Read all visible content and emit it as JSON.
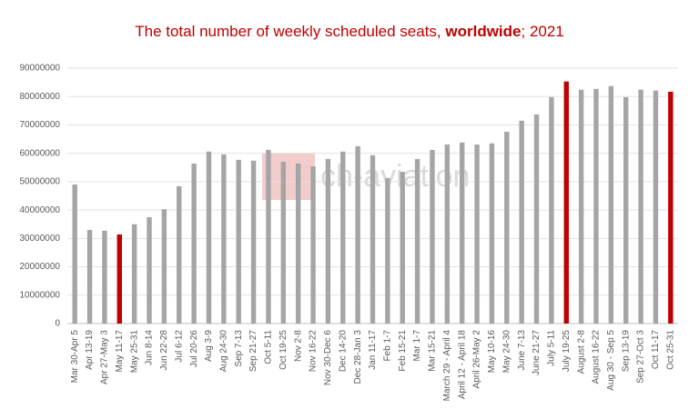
{
  "chart_data": {
    "type": "bar",
    "title": [
      "The total number of weekly scheduled seats, ",
      "worldwide",
      "; 2021"
    ],
    "watermark": "ch-aviation",
    "categories": [
      "Mar 30-Apr 5",
      "Apr 13-19",
      "Apr 27-May 3",
      "May 11-17",
      "May 25-31",
      "Jun 8-14",
      "Jun 22-28",
      "Jul 6-12",
      "Jul 20-26",
      "Aug 3-9",
      "Aug 24-30",
      "Sep 7-13",
      "Sep 21-27",
      "Oct 5-11",
      "Oct 19-25",
      "Nov 2-8",
      "Nov 16-22",
      "Nov 30-Dec 6",
      "Dec 14-20",
      "Dec 28-Jan 3",
      "Jan 11-17",
      "Feb 1-7",
      "Feb 15-21",
      "Mar 1-7",
      "Mar 15-21",
      "March 29 - April 4",
      "April 12 - April 18",
      "April 26-May 2",
      "May 10-16",
      "May 24-30",
      "June 7-13",
      "June 21-27",
      "July 5-11",
      "July 19-25",
      "August 2-8",
      "August 16-22",
      "Aug 30 - Sep 5",
      "Sep 13-19",
      "Sep 27-Oct 3",
      "Oct 11-17",
      "Oct 25-31"
    ],
    "values": [
      49000000,
      33000000,
      32700000,
      31400000,
      35000000,
      37500000,
      40300000,
      48400000,
      56400000,
      60600000,
      59600000,
      57700000,
      57400000,
      61200000,
      57000000,
      56400000,
      55400000,
      58000000,
      60600000,
      62500000,
      59300000,
      51300000,
      53500000,
      58000000,
      61200000,
      63100000,
      63800000,
      63100000,
      63500000,
      67600000,
      71500000,
      73700000,
      79800000,
      85300000,
      82400000,
      82700000,
      83700000,
      79800000,
      82400000,
      82100000,
      81700000
    ],
    "colors": [
      "#a5a5a5",
      "#a5a5a5",
      "#a5a5a5",
      "#c00000",
      "#a5a5a5",
      "#a5a5a5",
      "#a5a5a5",
      "#a5a5a5",
      "#a5a5a5",
      "#a5a5a5",
      "#a5a5a5",
      "#a5a5a5",
      "#a5a5a5",
      "#a5a5a5",
      "#a5a5a5",
      "#a5a5a5",
      "#a5a5a5",
      "#a5a5a5",
      "#a5a5a5",
      "#a5a5a5",
      "#a5a5a5",
      "#a5a5a5",
      "#a5a5a5",
      "#a5a5a5",
      "#a5a5a5",
      "#a5a5a5",
      "#a5a5a5",
      "#a5a5a5",
      "#a5a5a5",
      "#a5a5a5",
      "#a5a5a5",
      "#a5a5a5",
      "#a5a5a5",
      "#c00000",
      "#a5a5a5",
      "#a5a5a5",
      "#a5a5a5",
      "#a5a5a5",
      "#a5a5a5",
      "#a5a5a5",
      "#c00000"
    ],
    "ylim": [
      0,
      90000000
    ],
    "yticks": [
      0,
      10000000,
      20000000,
      30000000,
      40000000,
      50000000,
      60000000,
      70000000,
      80000000,
      90000000
    ],
    "grid": true
  }
}
